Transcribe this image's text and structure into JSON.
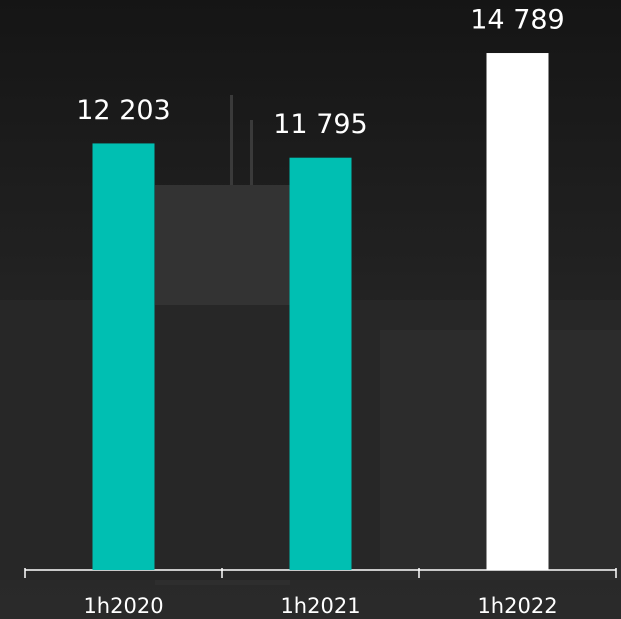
{
  "chart_data": {
    "type": "bar",
    "categories": [
      "1h2020",
      "1h2021",
      "1h2022"
    ],
    "values": [
      12203,
      11795,
      14789
    ],
    "value_labels": [
      "12 203",
      "11 795",
      "14 789"
    ],
    "colors": [
      "#00bfb2",
      "#00bfb2",
      "#ffffff"
    ],
    "ylim": [
      0,
      16000
    ]
  }
}
